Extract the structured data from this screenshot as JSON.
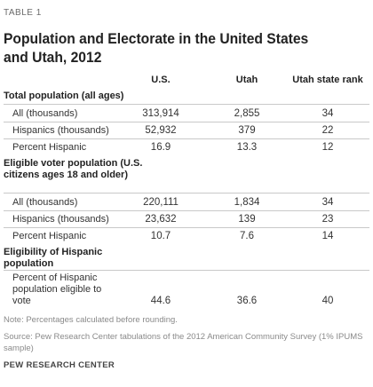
{
  "table_label": "TABLE 1",
  "title": "Population and Electorate in the United States and Utah, 2012",
  "columns": [
    "U.S.",
    "Utah",
    "Utah state rank"
  ],
  "sections": [
    {
      "heading": "Total population (all ages)",
      "rows": [
        {
          "label": "All (thousands)",
          "us": "313,914",
          "utah": "2,855",
          "rank": "34"
        },
        {
          "label": "Hispanics (thousands)",
          "us": "52,932",
          "utah": "379",
          "rank": "22"
        },
        {
          "label": "Percent Hispanic",
          "us": "16.9",
          "utah": "13.3",
          "rank": "12"
        }
      ]
    },
    {
      "heading": "Eligible voter population (U.S. citizens ages 18 and older)",
      "rows": [
        {
          "label": "All (thousands)",
          "us": "220,111",
          "utah": "1,834",
          "rank": "34"
        },
        {
          "label": "Hispanics (thousands)",
          "us": "23,632",
          "utah": "139",
          "rank": "23"
        },
        {
          "label": "Percent Hispanic",
          "us": "10.7",
          "utah": "7.6",
          "rank": "14"
        }
      ]
    },
    {
      "heading": "Eligibility of Hispanic population",
      "rows": [
        {
          "label": "Percent of Hispanic population eligible to vote",
          "us": "44.6",
          "utah": "36.6",
          "rank": "40"
        }
      ]
    }
  ],
  "note": "Note: Percentages calculated before rounding.",
  "source": "Source: Pew Research Center tabulations of the 2012 American Community Survey (1% IPUMS sample)",
  "brand": "PEW RESEARCH CENTER"
}
